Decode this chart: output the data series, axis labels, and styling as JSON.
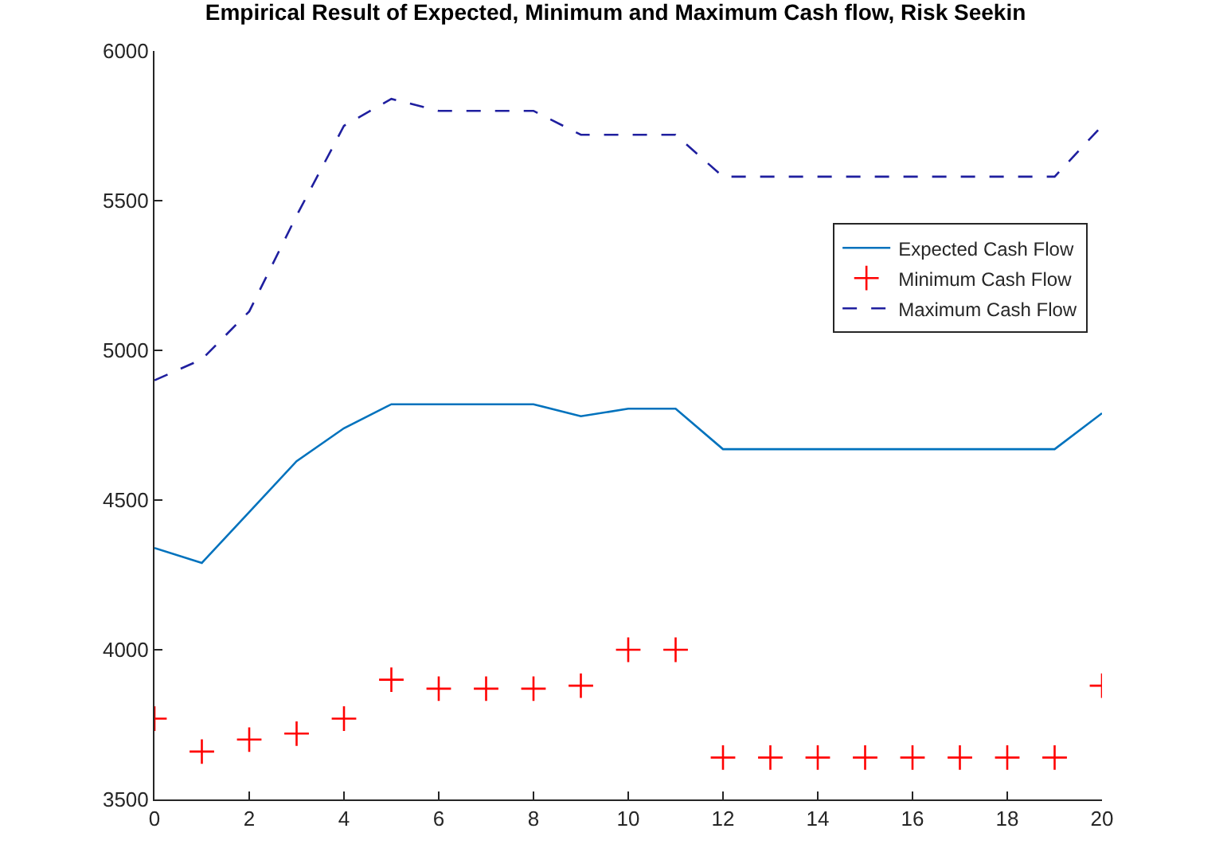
{
  "chart_data": {
    "type": "line",
    "title": "Empirical Result of Expected, Minimum and Maximum Cash flow, Risk Seekin",
    "x": [
      0,
      1,
      2,
      3,
      4,
      5,
      6,
      7,
      8,
      9,
      10,
      11,
      12,
      13,
      14,
      15,
      16,
      17,
      18,
      19,
      20
    ],
    "series": [
      {
        "name": "Expected Cash Flow",
        "color": "#0072bd",
        "marker": "none",
        "line_style": "solid",
        "values": [
          4340,
          4290,
          4460,
          4630,
          4740,
          4820,
          4820,
          4820,
          4820,
          4780,
          4805,
          4805,
          4670,
          4670,
          4670,
          4670,
          4670,
          4670,
          4670,
          4670,
          4790
        ]
      },
      {
        "name": "Minimum Cash Flow",
        "color": "#ff0000",
        "type": "scatter",
        "marker": "cross",
        "values": [
          3770,
          3660,
          3700,
          3720,
          3770,
          3900,
          3870,
          3870,
          3870,
          3880,
          4000,
          4000,
          3640,
          3640,
          3640,
          3640,
          3640,
          3640,
          3640,
          3640,
          3880
        ]
      },
      {
        "name": "Maximum Cash Flow",
        "color": "#1f1f9f",
        "marker": "none",
        "line_style": "dashed",
        "values": [
          4900,
          4970,
          5130,
          5450,
          5750,
          5840,
          5800,
          5800,
          5800,
          5720,
          5720,
          5720,
          5580,
          5580,
          5580,
          5580,
          5580,
          5580,
          5580,
          5580,
          5750
        ]
      }
    ],
    "xlim": [
      0,
      20
    ],
    "xticks": [
      0,
      2,
      4,
      6,
      8,
      10,
      12,
      14,
      16,
      18,
      20
    ],
    "ylim": [
      3500,
      6000
    ],
    "yticks": [
      3500,
      4000,
      4500,
      5000,
      5500,
      6000
    ],
    "legend": "top right"
  }
}
